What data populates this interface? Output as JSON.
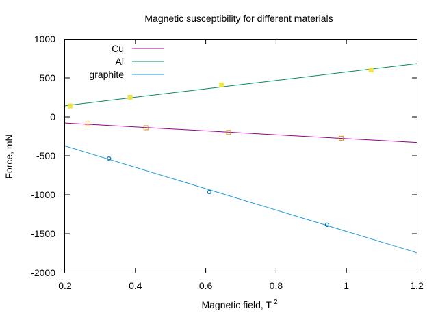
{
  "chart_data": {
    "type": "line",
    "title": "Magnetic susceptibility for different materials",
    "xlabel": "Magnetic field, T",
    "xlabel_superscript": "2",
    "ylabel": "Force, mN",
    "xlim": [
      0.2,
      1.2
    ],
    "ylim": [
      -2000,
      1000
    ],
    "x_ticks": [
      0.2,
      0.4,
      0.6,
      0.8,
      1,
      1.2
    ],
    "y_ticks": [
      -2000,
      -1500,
      -1000,
      -500,
      0,
      500,
      1000
    ],
    "x_tick_labels": [
      "0.2",
      "0.4",
      "0.6",
      "0.8",
      "1",
      "1.2"
    ],
    "y_tick_labels": [
      "-2000",
      "-1500",
      "-1000",
      "-500",
      "0",
      "500",
      "1000"
    ],
    "grid": false,
    "legend_position": "top-left",
    "series": [
      {
        "name": "Cu",
        "line_color": "#94008f",
        "marker": "open-square",
        "marker_color": "#e0861e",
        "fit": {
          "slope": -250,
          "intercept": -30
        },
        "points": [
          {
            "x": 0.265,
            "y": -90
          },
          {
            "x": 0.43,
            "y": -140
          },
          {
            "x": 0.665,
            "y": -200
          },
          {
            "x": 0.985,
            "y": -275
          }
        ]
      },
      {
        "name": "Al",
        "line_color": "#008a5e",
        "marker": "filled-square",
        "marker_color": "#f0e442",
        "fit": {
          "slope": 540,
          "intercept": 35
        },
        "points": [
          {
            "x": 0.215,
            "y": 140
          },
          {
            "x": 0.385,
            "y": 250
          },
          {
            "x": 0.645,
            "y": 410
          },
          {
            "x": 1.07,
            "y": 600
          }
        ]
      },
      {
        "name": "graphite",
        "line_color": "#1e9bd7",
        "marker": "open-circle",
        "marker_color": "#0072b2",
        "fit": {
          "slope": -1370,
          "intercept": -100
        },
        "points": [
          {
            "x": 0.325,
            "y": -535
          },
          {
            "x": 0.61,
            "y": -965
          },
          {
            "x": 0.945,
            "y": -1385
          }
        ]
      }
    ]
  }
}
